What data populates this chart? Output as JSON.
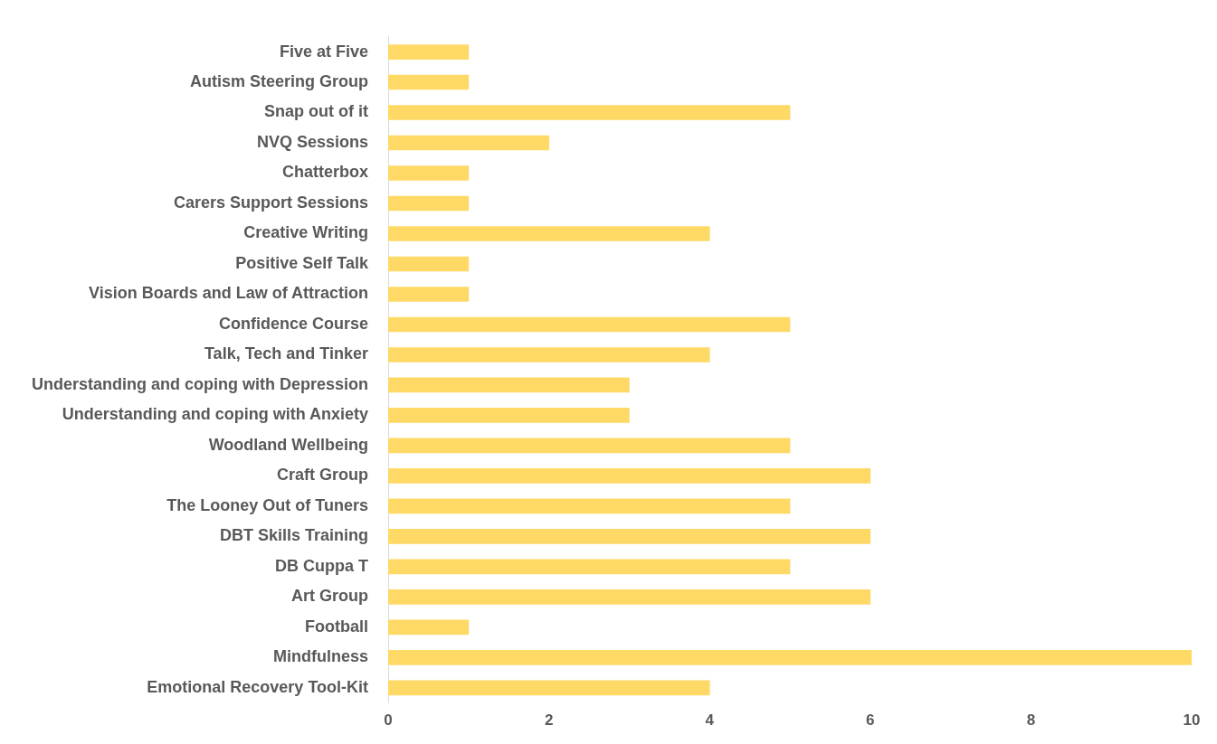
{
  "chart_data": {
    "type": "bar",
    "orientation": "horizontal",
    "categories": [
      "Five at Five",
      "Autism Steering Group",
      "Snap out of it",
      "NVQ Sessions",
      "Chatterbox",
      "Carers Support Sessions",
      "Creative Writing",
      "Positive Self Talk",
      "Vision Boards and Law of Attraction",
      "Confidence Course",
      "Talk, Tech and Tinker",
      "Understanding and coping with Depression",
      "Understanding and coping with Anxiety",
      "Woodland Wellbeing",
      "Craft Group",
      "The Looney Out of Tuners",
      "DBT Skills Training",
      "DB Cuppa T",
      "Art Group",
      "Football",
      "Mindfulness",
      "Emotional Recovery Tool-Kit"
    ],
    "values": [
      1,
      1,
      5,
      2,
      1,
      1,
      4,
      1,
      1,
      5,
      4,
      3,
      3,
      5,
      6,
      5,
      6,
      5,
      6,
      1,
      10,
      4
    ],
    "color": "#ffd966",
    "xlim": [
      0,
      10
    ],
    "xticks": [
      0,
      2,
      4,
      6,
      8,
      10
    ],
    "grid": false,
    "legend": false
  }
}
